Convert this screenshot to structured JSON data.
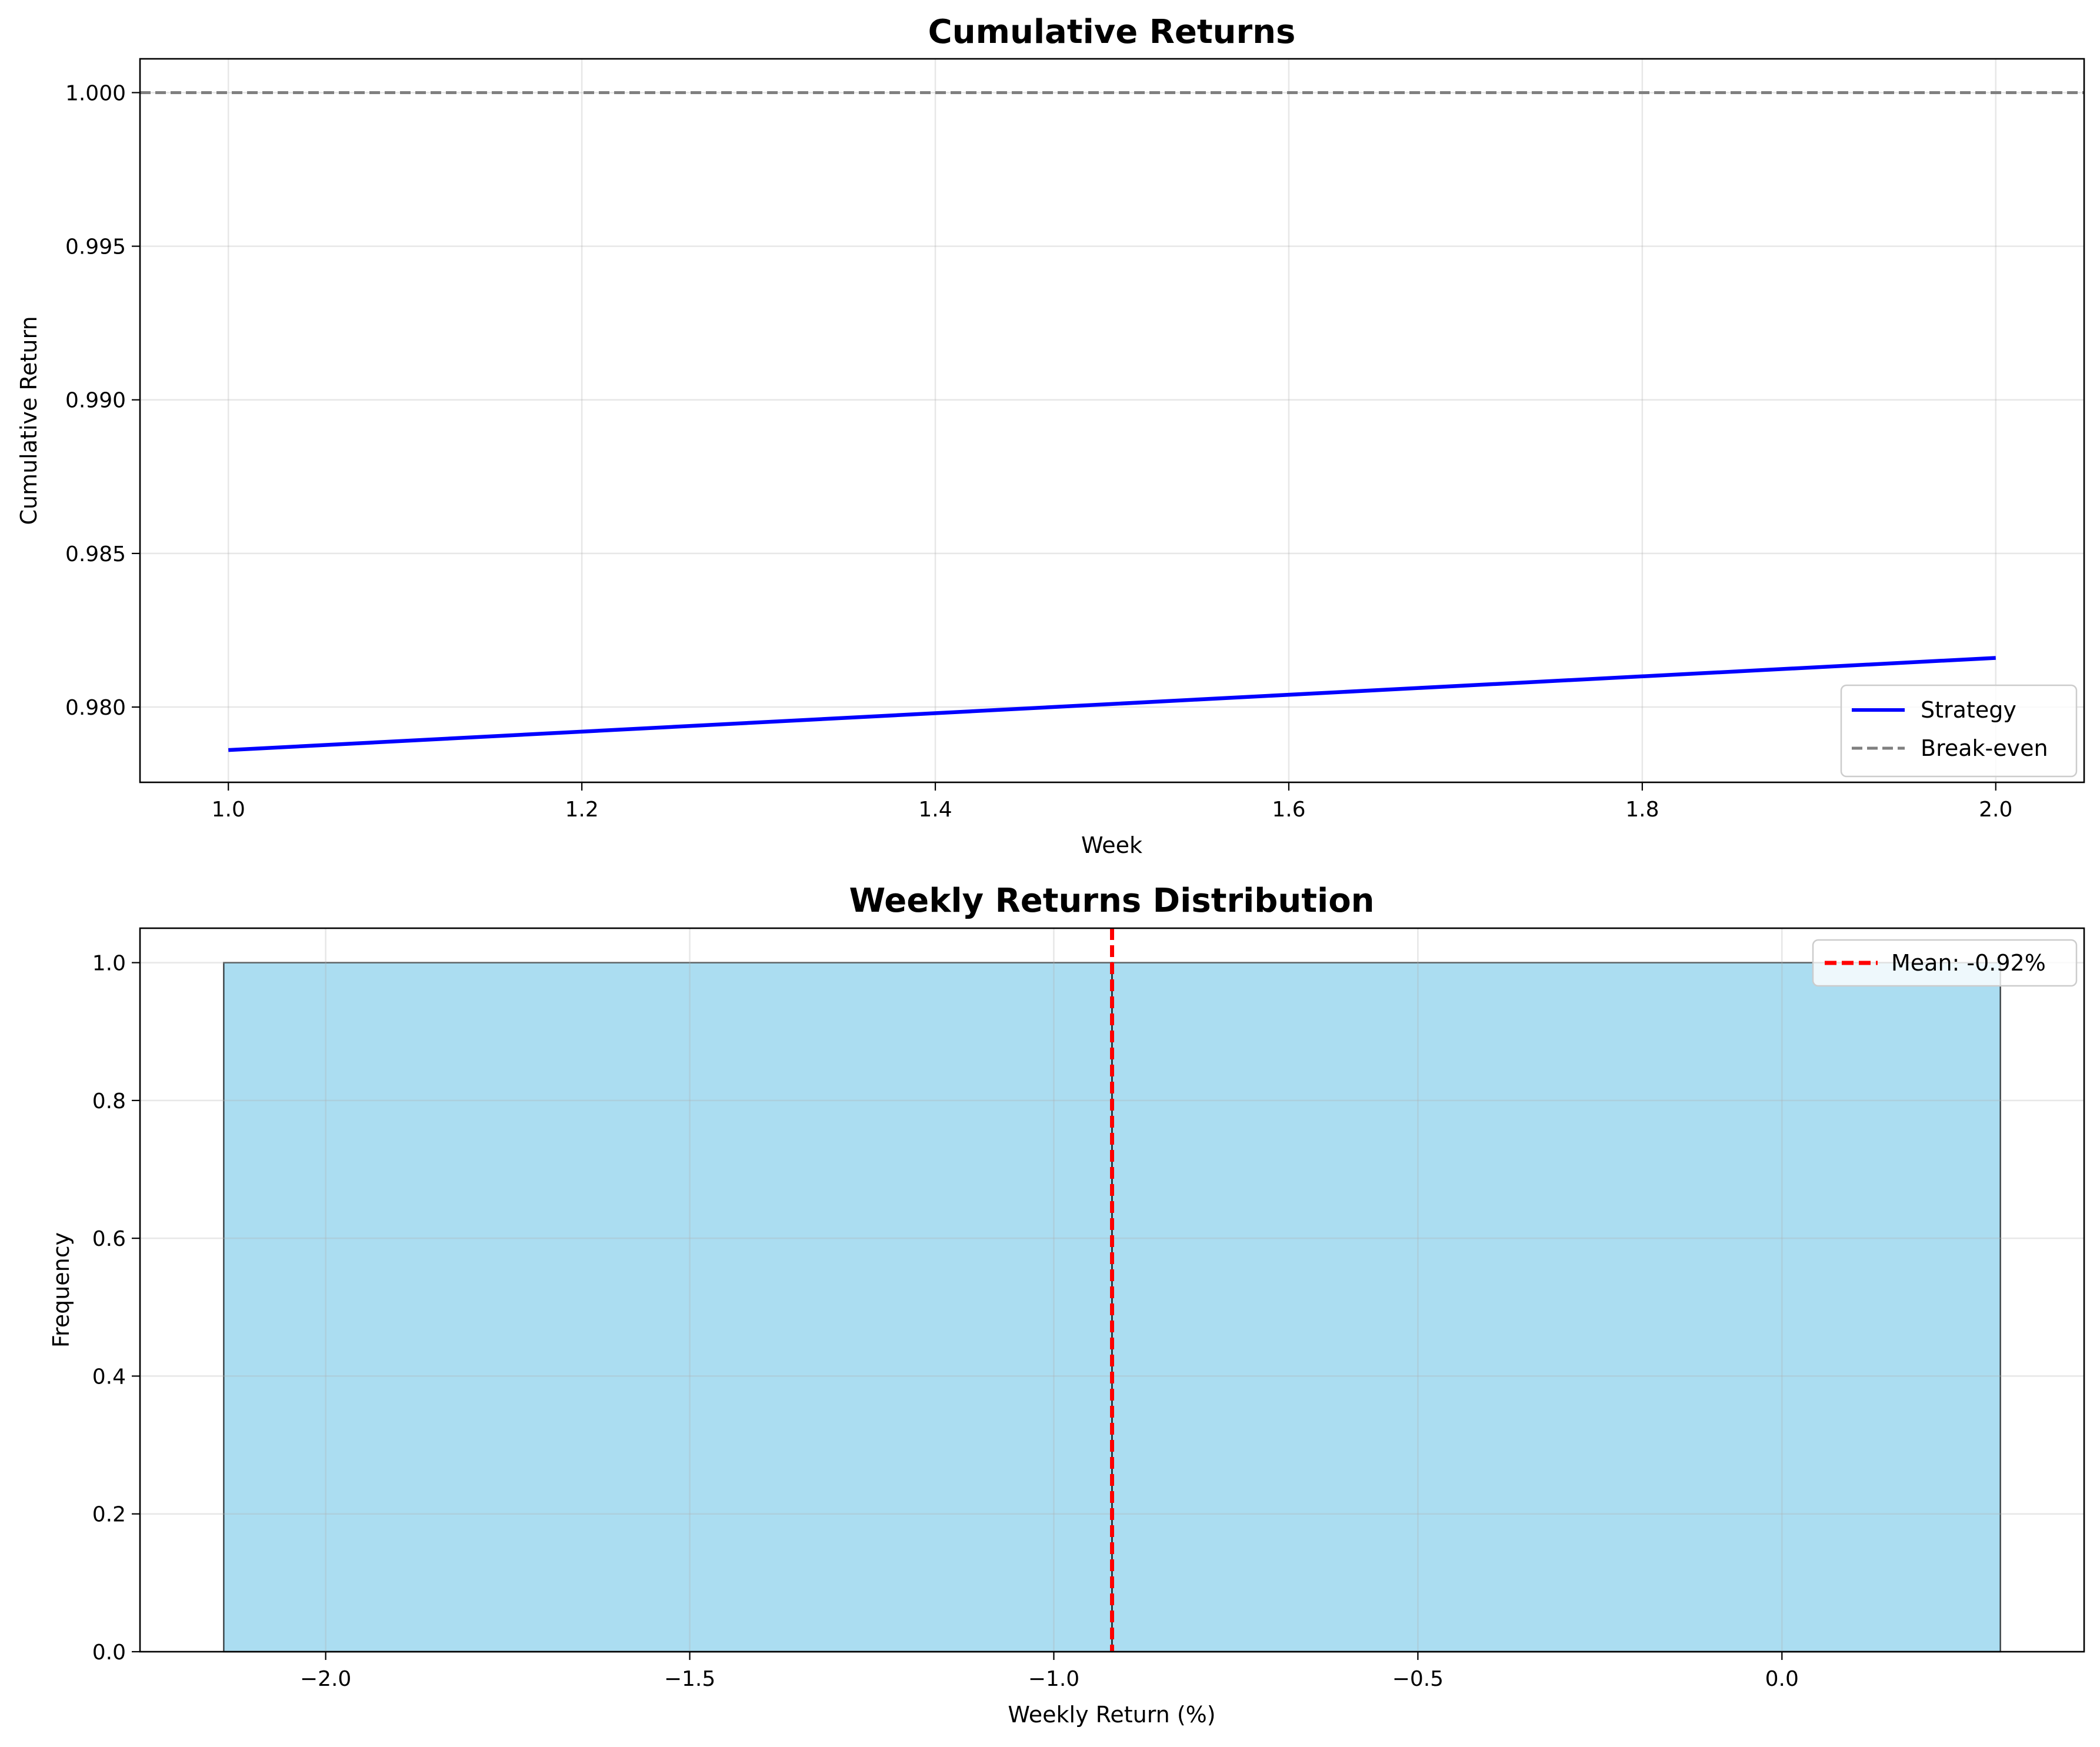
{
  "colors": {
    "strategy": "#0000ff",
    "breakeven": "#808080",
    "hist_fill": "#87ceeb",
    "hist_edge": "#000000",
    "mean": "#ff0000"
  },
  "chart_data": [
    {
      "type": "line",
      "title": "Cumulative Returns",
      "xlabel": "Week",
      "ylabel": "Cumulative Return",
      "xlim": [
        0.95,
        2.05
      ],
      "ylim": [
        0.97755,
        1.0011
      ],
      "xticks": [
        1.0,
        1.2,
        1.4,
        1.6,
        1.8,
        2.0
      ],
      "xtick_labels": [
        "1.0",
        "1.2",
        "1.4",
        "1.6",
        "1.8",
        "2.0"
      ],
      "yticks": [
        0.98,
        0.985,
        0.99,
        0.995,
        1.0
      ],
      "ytick_labels": [
        "0.980",
        "0.985",
        "0.990",
        "0.995",
        "1.000"
      ],
      "grid": true,
      "legend_position": "lower right",
      "series": [
        {
          "name": "Strategy",
          "x": [
            1.0,
            2.0
          ],
          "y": [
            0.9786,
            0.9816
          ]
        }
      ],
      "reference_lines": [
        {
          "name": "Break-even",
          "orientation": "horizontal",
          "value": 1.0,
          "style": "dashed"
        }
      ]
    },
    {
      "type": "bar",
      "title": "Weekly Returns Distribution",
      "xlabel": "Weekly Return (%)",
      "ylabel": "Frequency",
      "xlim": [
        -2.255,
        0.415
      ],
      "ylim": [
        0,
        1.05
      ],
      "xticks": [
        -2.0,
        -1.5,
        -1.0,
        -0.5,
        0.0
      ],
      "xtick_labels": [
        "−2.0",
        "−1.5",
        "−1.0",
        "−0.5",
        "0.0"
      ],
      "yticks": [
        0.0,
        0.2,
        0.4,
        0.6,
        0.8,
        1.0
      ],
      "ytick_labels": [
        "0.0",
        "0.2",
        "0.4",
        "0.6",
        "0.8",
        "1.0"
      ],
      "grid": true,
      "legend_position": "upper right",
      "bins": [
        {
          "x0": -2.14,
          "x1": -0.92,
          "count": 1
        },
        {
          "x0": -0.92,
          "x1": 0.3,
          "count": 1
        }
      ],
      "reference_lines": [
        {
          "name": "Mean: -0.92%",
          "orientation": "vertical",
          "value": -0.92,
          "style": "dashed"
        }
      ]
    }
  ]
}
